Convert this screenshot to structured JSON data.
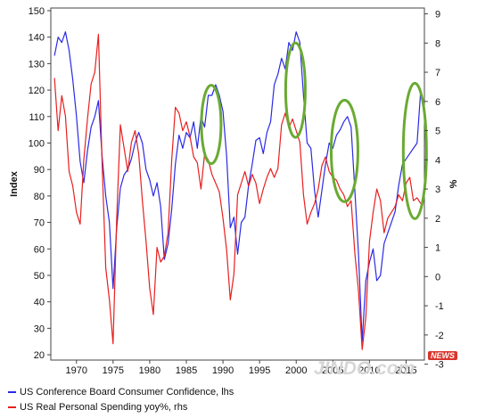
{
  "chart_data": {
    "type": "line",
    "title": "",
    "xlabel": "",
    "ylabel_left": "Index",
    "ylabel_right": "%",
    "xlim": [
      1966.5,
      2017.5
    ],
    "ylim_left": [
      18,
      151
    ],
    "ylim_right": [
      -2.86,
      9.2
    ],
    "xticks": [
      1970,
      1975,
      1980,
      1985,
      1990,
      1995,
      2000,
      2005,
      2010,
      2015
    ],
    "yticks_left": [
      20,
      30,
      40,
      50,
      60,
      70,
      80,
      90,
      100,
      110,
      120,
      130,
      140,
      150
    ],
    "yticks_right": [
      -3,
      -2,
      -1,
      0,
      1,
      2,
      3,
      4,
      5,
      6,
      7,
      8,
      9
    ],
    "grid": false,
    "series": [
      {
        "name": "US Conference Board Consumer Confidence, lhs",
        "axis": "left",
        "color": "#2a2ae6",
        "x": [
          1967.0,
          1967.5,
          1968.0,
          1968.5,
          1969.0,
          1969.5,
          1970.0,
          1970.5,
          1971.0,
          1971.5,
          1972.0,
          1972.5,
          1973.0,
          1973.5,
          1974.0,
          1974.5,
          1975.0,
          1975.5,
          1976.0,
          1976.5,
          1977.0,
          1977.5,
          1978.0,
          1978.5,
          1979.0,
          1979.5,
          1980.0,
          1980.5,
          1981.0,
          1981.5,
          1982.0,
          1982.5,
          1983.0,
          1983.5,
          1984.0,
          1984.5,
          1985.0,
          1985.5,
          1986.0,
          1986.5,
          1987.0,
          1987.5,
          1988.0,
          1988.5,
          1989.0,
          1989.5,
          1990.0,
          1990.5,
          1991.0,
          1991.5,
          1992.0,
          1992.5,
          1993.0,
          1993.5,
          1994.0,
          1994.5,
          1995.0,
          1995.5,
          1996.0,
          1996.5,
          1997.0,
          1997.5,
          1998.0,
          1998.5,
          1999.0,
          1999.5,
          2000.0,
          2000.5,
          2001.0,
          2001.5,
          2002.0,
          2002.5,
          2003.0,
          2003.5,
          2004.0,
          2004.5,
          2005.0,
          2005.5,
          2006.0,
          2006.5,
          2007.0,
          2007.5,
          2008.0,
          2008.5,
          2009.0,
          2009.5,
          2010.0,
          2010.5,
          2011.0,
          2011.5,
          2012.0,
          2012.5,
          2013.0,
          2013.5,
          2014.0,
          2014.5,
          2015.0,
          2015.5,
          2016.0,
          2016.5,
          2017.0
        ],
        "values": [
          133,
          140,
          138,
          142,
          135,
          124,
          110,
          93,
          85,
          97,
          106,
          110,
          116,
          95,
          80,
          70,
          45,
          68,
          83,
          88,
          90,
          94,
          100,
          104,
          100,
          90,
          86,
          80,
          85,
          76,
          56,
          62,
          75,
          92,
          103,
          98,
          104,
          102,
          108,
          98,
          110,
          106,
          118,
          118,
          122,
          118,
          112,
          95,
          68,
          72,
          58,
          70,
          72,
          84,
          92,
          101,
          102,
          96,
          104,
          108,
          122,
          126,
          132,
          128,
          138,
          135,
          142,
          138,
          118,
          100,
          98,
          82,
          72,
          82,
          92,
          100,
          98,
          103,
          105,
          108,
          110,
          106,
          82,
          58,
          25,
          48,
          55,
          60,
          48,
          50,
          62,
          66,
          70,
          74,
          84,
          92,
          94,
          96,
          98,
          100,
          120
        ]
      },
      {
        "name": "US Real Personal Spending yoy%, rhs",
        "axis": "right",
        "color": "#e81f1f",
        "x": [
          1967.0,
          1967.5,
          1968.0,
          1968.5,
          1969.0,
          1969.5,
          1970.0,
          1970.5,
          1971.0,
          1971.5,
          1972.0,
          1972.5,
          1973.0,
          1973.5,
          1974.0,
          1974.5,
          1975.0,
          1975.5,
          1976.0,
          1976.5,
          1977.0,
          1977.5,
          1978.0,
          1978.5,
          1979.0,
          1979.5,
          1980.0,
          1980.5,
          1981.0,
          1981.5,
          1982.0,
          1982.5,
          1983.0,
          1983.5,
          1984.0,
          1984.5,
          1985.0,
          1985.5,
          1986.0,
          1986.5,
          1987.0,
          1987.5,
          1988.0,
          1988.5,
          1989.0,
          1989.5,
          1990.0,
          1990.5,
          1991.0,
          1991.5,
          1992.0,
          1992.5,
          1993.0,
          1993.5,
          1994.0,
          1994.5,
          1995.0,
          1995.5,
          1996.0,
          1996.5,
          1997.0,
          1997.5,
          1998.0,
          1998.5,
          1999.0,
          1999.5,
          2000.0,
          2000.5,
          2001.0,
          2001.5,
          2002.0,
          2002.5,
          2003.0,
          2003.5,
          2004.0,
          2004.5,
          2005.0,
          2005.5,
          2006.0,
          2006.5,
          2007.0,
          2007.5,
          2008.0,
          2008.5,
          2009.0,
          2009.5,
          2010.0,
          2010.5,
          2011.0,
          2011.5,
          2012.0,
          2012.5,
          2013.0,
          2013.5,
          2014.0,
          2014.5,
          2015.0,
          2015.5,
          2016.0,
          2016.5,
          2017.0
        ],
        "values": [
          6.8,
          5.0,
          6.2,
          5.5,
          3.6,
          3.1,
          2.2,
          1.8,
          4.0,
          5.4,
          6.6,
          7.0,
          8.3,
          3.9,
          0.3,
          -0.8,
          -2.3,
          2.0,
          5.2,
          4.4,
          3.6,
          4.6,
          5.0,
          4.2,
          2.6,
          1.2,
          -0.4,
          -1.3,
          1.0,
          0.5,
          0.7,
          1.5,
          4.0,
          5.8,
          5.6,
          5.0,
          5.3,
          4.8,
          4.1,
          3.9,
          3.0,
          4.2,
          4.0,
          3.5,
          3.2,
          2.9,
          2.0,
          0.9,
          -0.8,
          0.1,
          2.8,
          3.2,
          3.6,
          3.1,
          3.5,
          3.2,
          2.5,
          3.0,
          3.4,
          3.7,
          3.4,
          3.7,
          5.2,
          5.6,
          5.1,
          5.4,
          5.0,
          4.6,
          2.8,
          1.8,
          2.2,
          2.5,
          3.0,
          3.8,
          4.1,
          3.6,
          3.4,
          3.3,
          3.0,
          2.8,
          2.4,
          2.6,
          0.8,
          -0.5,
          -2.5,
          -1.4,
          1.2,
          2.2,
          3.0,
          2.6,
          1.5,
          2.0,
          2.2,
          2.4,
          2.8,
          2.6,
          3.2,
          3.4,
          2.6,
          2.7,
          2.5
        ]
      }
    ],
    "annotations": "four green ellipses highlighting periods around 1988-1989, 1999-2000, 2006-2007 and 2016"
  },
  "legend": {
    "items": [
      {
        "label": "US Conference Board Consumer Confidence, lhs",
        "color": "#2a2ae6"
      },
      {
        "label": "US Real Personal Spending yoy%, rhs",
        "color": "#e81f1f"
      }
    ]
  },
  "watermark": {
    "text": "JINDO.com",
    "tag": "NEWS"
  },
  "colors": {
    "axis": "#444444",
    "highlight": "#6aaa32",
    "text": "#111111"
  }
}
